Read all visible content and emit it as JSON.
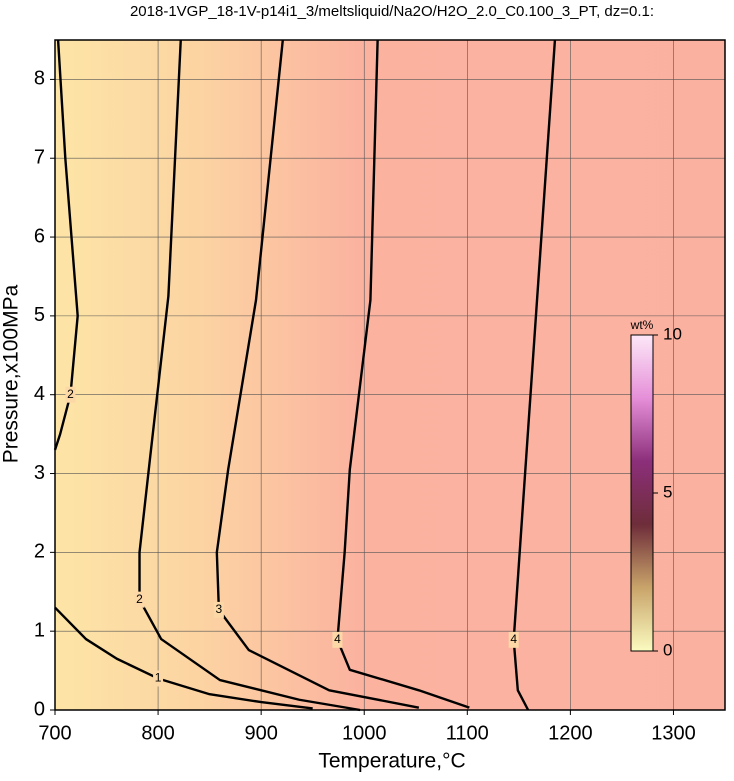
{
  "chart_data": {
    "type": "contour",
    "title": "2018-1VGP_18-1V-p14i1_3/meltsliquid/Na2O/H2O_2.0_C0.100_3_PT, dz=0.1:",
    "xlabel": "Temperature,°C",
    "ylabel": "Pressure,x100MPa",
    "xlim": [
      700,
      1350
    ],
    "ylim": [
      0,
      8.5
    ],
    "xticks": [
      700,
      800,
      900,
      1000,
      1100,
      1200,
      1300
    ],
    "yticks": [
      0,
      1,
      2,
      3,
      4,
      5,
      6,
      7,
      8
    ],
    "grid": true,
    "series": [
      {
        "name": "1",
        "color": "#000000",
        "x": [
          700,
          730,
          760,
          800,
          850,
          900,
          950
        ],
        "y": [
          1.3,
          0.9,
          0.65,
          0.4,
          0.2,
          0.1,
          0.02
        ]
      },
      {
        "name": "2",
        "color": "#000000",
        "x": [
          703,
          710,
          722,
          715,
          705,
          700
        ],
        "y": [
          8.5,
          7,
          5,
          4,
          3.5,
          3.3
        ]
      },
      {
        "name": "2",
        "color": "#000000",
        "x": [
          822,
          810,
          792,
          782,
          782,
          803,
          860,
          937,
          996
        ],
        "y": [
          8.5,
          5.25,
          3.17,
          2.0,
          1.4,
          0.9,
          0.38,
          0.13,
          0
        ]
      },
      {
        "name": "3",
        "color": "#000000",
        "x": [
          921,
          895,
          868,
          857,
          859,
          888,
          966,
          1053
        ],
        "y": [
          8.5,
          5.2,
          3.05,
          2.0,
          1.27,
          0.76,
          0.25,
          0.03
        ]
      },
      {
        "name": "4",
        "color": "#000000",
        "x": [
          1013,
          1006,
          986,
          981,
          974,
          986,
          1053,
          1102
        ],
        "y": [
          8.5,
          5.2,
          3.05,
          2.0,
          0.89,
          0.51,
          0.25,
          0.03
        ]
      },
      {
        "name": "4",
        "color": "#000000",
        "x": [
          1185,
          1170,
          1155,
          1145,
          1149,
          1159
        ],
        "y": [
          8.5,
          5.65,
          2.8,
          0.89,
          0.25,
          0
        ]
      }
    ],
    "colorbar": {
      "label": "wt%",
      "lim": [
        0,
        10
      ],
      "ticks": [
        0,
        5,
        10
      ],
      "colors": [
        "#fbfbc0",
        "#c9a46a",
        "#6e2d3a",
        "#8c2f7a",
        "#e58fd8",
        "#fde8f8"
      ]
    },
    "fill_colors": [
      "#fde5a6",
      "#fcd3a2",
      "#fbb3a0",
      "#fbb1a0"
    ]
  }
}
